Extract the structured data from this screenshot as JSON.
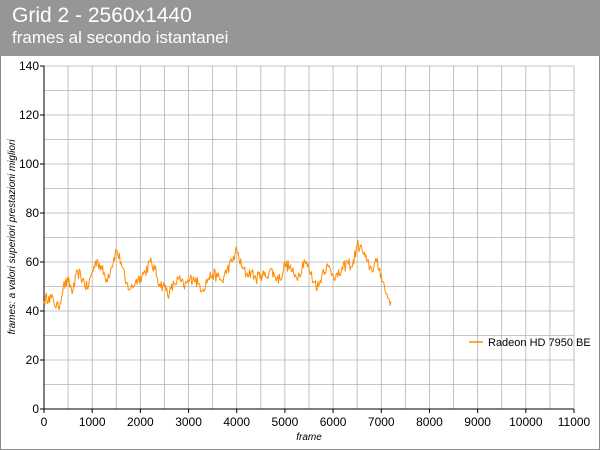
{
  "header": {
    "title": "Grid 2 - 2560x1440",
    "subtitle": "frames al secondo istantanei"
  },
  "colors": {
    "header_bg": "#969696",
    "series": "#ff8c00",
    "grid": "#b3b3b3"
  },
  "chart_data": {
    "type": "line",
    "title": "Grid 2 - 2560x1440",
    "subtitle": "frames al secondo istantanei",
    "xlabel": "frame",
    "ylabel": "frames: a valori superiori prestazioni migliori",
    "xlim": [
      0,
      11000
    ],
    "ylim": [
      0,
      140
    ],
    "x_ticks": [
      0,
      1000,
      2000,
      3000,
      4000,
      5000,
      6000,
      7000,
      8000,
      9000,
      10000,
      11000
    ],
    "y_ticks": [
      0,
      20,
      40,
      60,
      80,
      100,
      120,
      140
    ],
    "grid": true,
    "legend_position": "right",
    "series": [
      {
        "name": "Radeon HD 7950 BE",
        "x": [
          0,
          100,
          200,
          300,
          400,
          500,
          600,
          700,
          800,
          900,
          1000,
          1100,
          1200,
          1300,
          1400,
          1500,
          1600,
          1700,
          1800,
          1900,
          2000,
          2100,
          2200,
          2300,
          2400,
          2500,
          2600,
          2700,
          2800,
          2900,
          3000,
          3100,
          3200,
          3300,
          3400,
          3500,
          3600,
          3700,
          3800,
          3900,
          4000,
          4100,
          4200,
          4300,
          4400,
          4500,
          4600,
          4700,
          4800,
          4900,
          5000,
          5100,
          5200,
          5300,
          5400,
          5500,
          5600,
          5700,
          5800,
          5900,
          6000,
          6100,
          6200,
          6300,
          6400,
          6500,
          6600,
          6700,
          6800,
          6900,
          7000,
          7100,
          7200
        ],
        "values": [
          44,
          46,
          44,
          41,
          50,
          52,
          48,
          56,
          53,
          49,
          56,
          61,
          57,
          53,
          58,
          65,
          60,
          51,
          49,
          52,
          54,
          56,
          60,
          57,
          51,
          50,
          47,
          51,
          53,
          50,
          52,
          54,
          51,
          49,
          53,
          55,
          54,
          52,
          57,
          60,
          65,
          58,
          55,
          56,
          53,
          55,
          54,
          57,
          54,
          53,
          59,
          58,
          54,
          55,
          61,
          57,
          52,
          50,
          57,
          58,
          55,
          54,
          57,
          60,
          58,
          67,
          65,
          60,
          57,
          60,
          55,
          47,
          44
        ]
      }
    ]
  }
}
